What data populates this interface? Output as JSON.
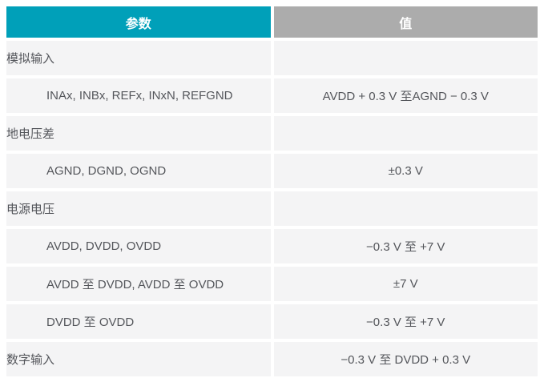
{
  "table": {
    "columns": [
      {
        "label": "参数"
      },
      {
        "label": "值"
      }
    ],
    "rows": [
      {
        "param": "模拟输入",
        "value": ""
      },
      {
        "param": "INAx, INBx, REFx, INxN, REFGND",
        "value": "AVDD + 0.3 V 至AGND − 0.3 V"
      },
      {
        "param": "地电压差",
        "value": ""
      },
      {
        "param": "AGND, DGND, OGND",
        "value": "±0.3 V"
      },
      {
        "param": "电源电压",
        "value": ""
      },
      {
        "param": "AVDD, DVDD, OVDD",
        "value": "−0.3 V 至 +7 V"
      },
      {
        "param": "AVDD 至 DVDD, AVDD 至 OVDD",
        "value": "±7 V"
      },
      {
        "param": "DVDD 至 OVDD",
        "value": "−0.3 V 至 +7 V"
      },
      {
        "param": "数字输入",
        "value": "−0.3 V 至 DVDD + 0.3 V"
      }
    ],
    "colors": {
      "param_header_bg": "#00A0B9",
      "value_header_bg": "#ACACAC",
      "row_bg": "#F4F4F5",
      "header_text": "#FFFFFF",
      "body_text": "#54565B"
    }
  }
}
